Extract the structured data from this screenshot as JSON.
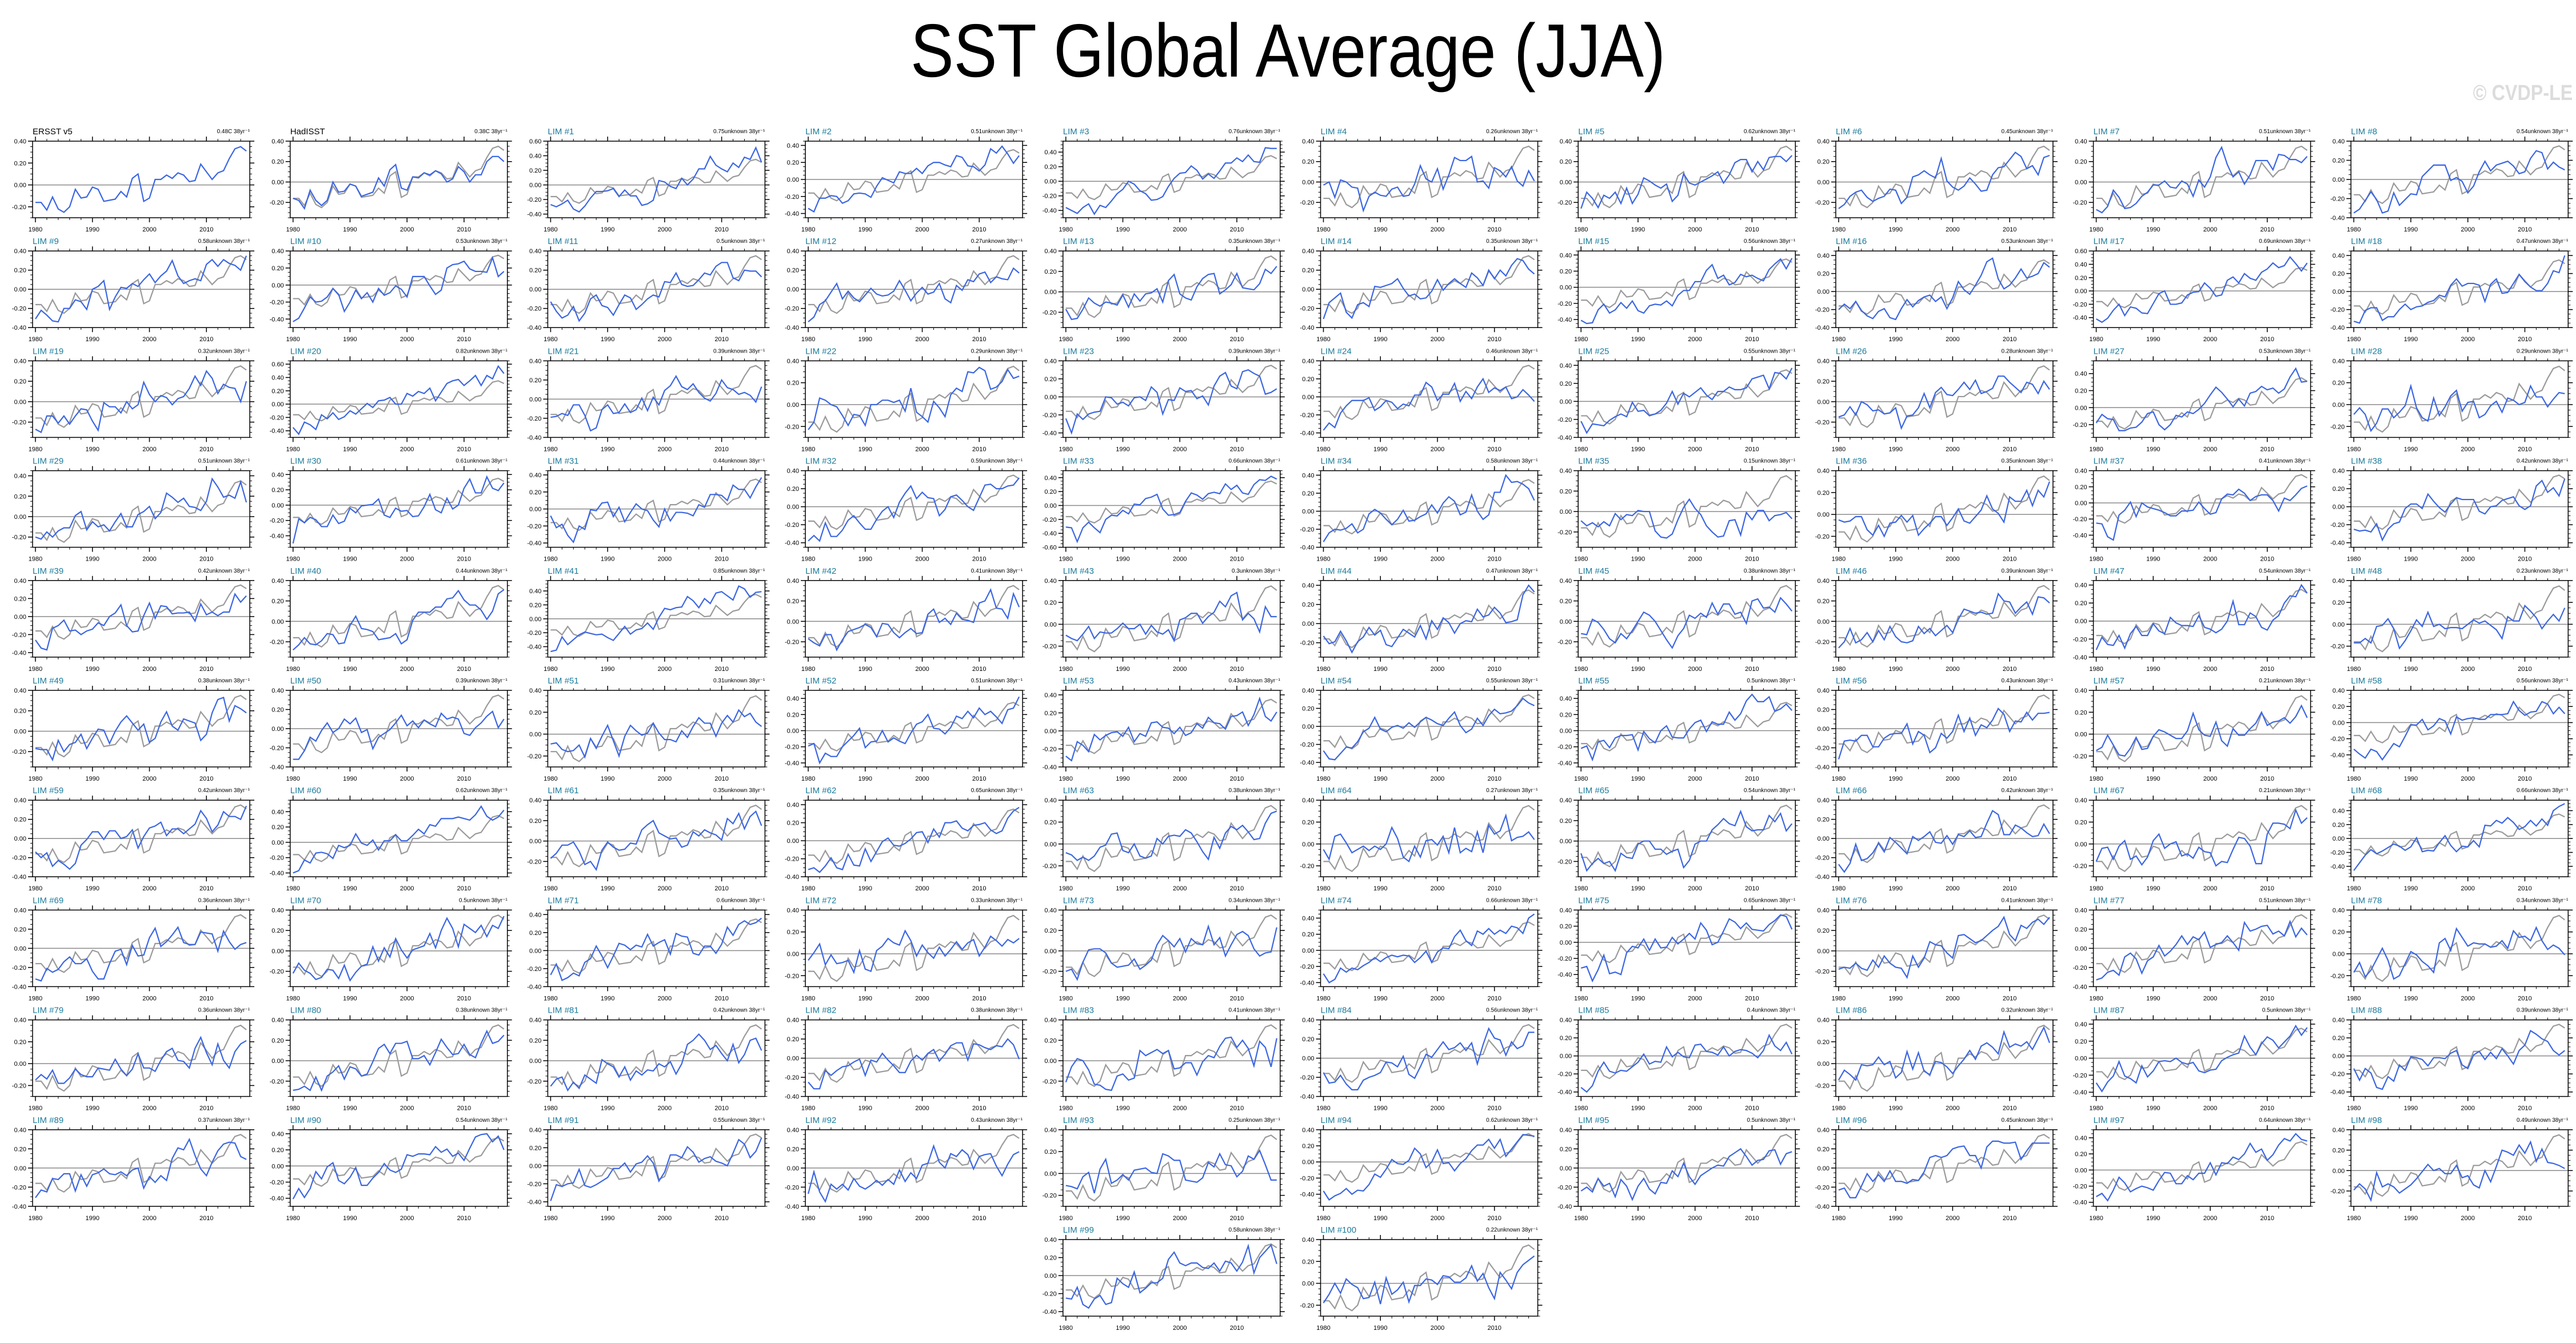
{
  "chart_data": {
    "type": "line",
    "title": "SST Global Average (JJA)",
    "watermark": "© CVDP-LE",
    "x_tick_labels": [
      "1980",
      "1990",
      "2000",
      "2010"
    ],
    "years": [
      1980,
      1981,
      1982,
      1983,
      1984,
      1985,
      1986,
      1987,
      1988,
      1989,
      1990,
      1991,
      1992,
      1993,
      1994,
      1995,
      1996,
      1997,
      1998,
      1999,
      2000,
      2001,
      2002,
      2003,
      2004,
      2005,
      2006,
      2007,
      2008,
      2009,
      2010,
      2011,
      2012,
      2013,
      2014,
      2015,
      2016,
      2017
    ],
    "reference_series": [
      -0.16,
      -0.16,
      -0.23,
      -0.11,
      -0.22,
      -0.25,
      -0.2,
      -0.04,
      -0.12,
      -0.11,
      -0.02,
      -0.04,
      -0.15,
      -0.14,
      -0.13,
      -0.06,
      -0.11,
      0.06,
      0.1,
      -0.15,
      -0.12,
      0.05,
      0.05,
      0.09,
      0.06,
      0.11,
      0.09,
      0.03,
      0.04,
      0.19,
      0.12,
      0.05,
      0.11,
      0.13,
      0.24,
      0.33,
      0.35,
      0.31
    ],
    "colors": {
      "member_line": "#3b66e3",
      "reference_line": "#9a9a9a",
      "zero_line": "#8a8a8a",
      "obs_title": "#000000",
      "lim_title": "#1c7b9c"
    },
    "panels": [
      {
        "title": "ERSST v5",
        "trend_label": "0.48C 38yr⁻¹",
        "kind": "obs",
        "values": [
          -0.16,
          -0.16,
          -0.23,
          -0.11,
          -0.22,
          -0.25,
          -0.2,
          -0.04,
          -0.12,
          -0.11,
          -0.02,
          -0.04,
          -0.15,
          -0.14,
          -0.13,
          -0.06,
          -0.11,
          0.06,
          0.1,
          -0.15,
          -0.12,
          0.05,
          0.05,
          0.09,
          0.06,
          0.11,
          0.09,
          0.03,
          0.04,
          0.19,
          0.12,
          0.05,
          0.11,
          0.13,
          0.24,
          0.33,
          0.35,
          0.31
        ]
      },
      {
        "title": "HadISST",
        "trend_label": "0.38C 38yr⁻¹",
        "kind": "obs",
        "values": [
          -0.16,
          -0.18,
          -0.26,
          -0.08,
          -0.18,
          -0.23,
          -0.18,
          0.0,
          -0.1,
          -0.09,
          -0.02,
          -0.04,
          -0.14,
          -0.12,
          -0.1,
          0.04,
          -0.04,
          0.12,
          0.17,
          -0.06,
          -0.08,
          0.05,
          0.04,
          0.09,
          0.07,
          0.11,
          0.08,
          0.0,
          0.03,
          0.15,
          0.1,
          0.0,
          0.07,
          0.07,
          0.2,
          0.25,
          0.25,
          0.2
        ]
      },
      {
        "title": "LIM #1",
        "trend_label": "0.75unknown 38yr⁻¹",
        "values": [
          -0.27,
          -0.3,
          -0.26,
          -0.21,
          -0.33,
          -0.37,
          -0.29,
          -0.18,
          -0.09,
          -0.09,
          -0.08,
          -0.05,
          -0.16,
          -0.07,
          -0.15,
          -0.15,
          -0.28,
          -0.26,
          -0.21,
          0.06,
          0.04,
          -0.02,
          -0.05,
          0.09,
          0.0,
          0.08,
          0.22,
          0.22,
          0.39,
          0.27,
          0.22,
          0.18,
          0.3,
          0.24,
          0.38,
          0.35,
          0.51,
          0.31
        ]
      },
      {
        "title": "LIM #2",
        "trend_label": "0.51unknown 38yr⁻¹"
      },
      {
        "title": "LIM #3",
        "trend_label": "0.76unknown 38yr⁻¹"
      },
      {
        "title": "LIM #4",
        "trend_label": "0.26unknown 38yr⁻¹"
      },
      {
        "title": "LIM #5",
        "trend_label": "0.62unknown 38yr⁻¹"
      },
      {
        "title": "LIM #6",
        "trend_label": "0.45unknown 38yr⁻¹"
      },
      {
        "title": "LIM #7",
        "trend_label": "0.51unknown 38yr⁻¹"
      },
      {
        "title": "LIM #8",
        "trend_label": "0.54unknown 38yr⁻¹"
      },
      {
        "title": "LIM #9",
        "trend_label": "0.58unknown 38yr⁻¹"
      },
      {
        "title": "LIM #10",
        "trend_label": "0.53unknown 38yr⁻¹"
      },
      {
        "title": "LIM #11",
        "trend_label": "0.5unknown 38yr⁻¹"
      },
      {
        "title": "LIM #12",
        "trend_label": "0.27unknown 38yr⁻¹"
      },
      {
        "title": "LIM #13",
        "trend_label": "0.35unknown 38yr⁻¹"
      },
      {
        "title": "LIM #14",
        "trend_label": "0.35unknown 38yr⁻¹"
      },
      {
        "title": "LIM #15",
        "trend_label": "0.56unknown 38yr⁻¹"
      },
      {
        "title": "LIM #16",
        "trend_label": "0.53unknown 38yr⁻¹"
      },
      {
        "title": "LIM #17",
        "trend_label": "0.69unknown 38yr⁻¹"
      },
      {
        "title": "LIM #18",
        "trend_label": "0.47unknown 38yr⁻¹"
      },
      {
        "title": "LIM #19",
        "trend_label": "0.32unknown 38yr⁻¹"
      },
      {
        "title": "LIM #20",
        "trend_label": "0.82unknown 38yr⁻¹"
      },
      {
        "title": "LIM #21",
        "trend_label": "0.39unknown 38yr⁻¹"
      },
      {
        "title": "LIM #22",
        "trend_label": "0.29unknown 38yr⁻¹"
      },
      {
        "title": "LIM #23",
        "trend_label": "0.39unknown 38yr⁻¹"
      },
      {
        "title": "LIM #24",
        "trend_label": "0.46unknown 38yr⁻¹"
      },
      {
        "title": "LIM #25",
        "trend_label": "0.55unknown 38yr⁻¹"
      },
      {
        "title": "LIM #26",
        "trend_label": "0.28unknown 38yr⁻¹"
      },
      {
        "title": "LIM #27",
        "trend_label": "0.53unknown 38yr⁻¹"
      },
      {
        "title": "LIM #28",
        "trend_label": "0.29unknown 38yr⁻¹"
      },
      {
        "title": "LIM #29",
        "trend_label": "0.51unknown 38yr⁻¹"
      },
      {
        "title": "LIM #30",
        "trend_label": "0.61unknown 38yr⁻¹"
      },
      {
        "title": "LIM #31",
        "trend_label": "0.44unknown 38yr⁻¹"
      },
      {
        "title": "LIM #32",
        "trend_label": "0.59unknown 38yr⁻¹"
      },
      {
        "title": "LIM #33",
        "trend_label": "0.66unknown 38yr⁻¹"
      },
      {
        "title": "LIM #34",
        "trend_label": "0.58unknown 38yr⁻¹"
      },
      {
        "title": "LIM #35",
        "trend_label": "0.15unknown 38yr⁻¹"
      },
      {
        "title": "LIM #36",
        "trend_label": "0.35unknown 38yr⁻¹"
      },
      {
        "title": "LIM #37",
        "trend_label": "0.41unknown 38yr⁻¹"
      },
      {
        "title": "LIM #38",
        "trend_label": "0.42unknown 38yr⁻¹"
      },
      {
        "title": "LIM #39",
        "trend_label": "0.42unknown 38yr⁻¹"
      },
      {
        "title": "LIM #40",
        "trend_label": "0.44unknown 38yr⁻¹"
      },
      {
        "title": "LIM #41",
        "trend_label": "0.85unknown 38yr⁻¹"
      },
      {
        "title": "LIM #42",
        "trend_label": "0.41unknown 38yr⁻¹"
      },
      {
        "title": "LIM #43",
        "trend_label": "0.3unknown 38yr⁻¹"
      },
      {
        "title": "LIM #44",
        "trend_label": "0.47unknown 38yr⁻¹"
      },
      {
        "title": "LIM #45",
        "trend_label": "0.38unknown 38yr⁻¹"
      },
      {
        "title": "LIM #46",
        "trend_label": "0.39unknown 38yr⁻¹"
      },
      {
        "title": "LIM #47",
        "trend_label": "0.54unknown 38yr⁻¹"
      },
      {
        "title": "LIM #48",
        "trend_label": "0.23unknown 38yr⁻¹"
      },
      {
        "title": "LIM #49",
        "trend_label": "0.38unknown 38yr⁻¹"
      },
      {
        "title": "LIM #50",
        "trend_label": "0.39unknown 38yr⁻¹"
      },
      {
        "title": "LIM #51",
        "trend_label": "0.31unknown 38yr⁻¹"
      },
      {
        "title": "LIM #52",
        "trend_label": "0.51unknown 38yr⁻¹"
      },
      {
        "title": "LIM #53",
        "trend_label": "0.43unknown 38yr⁻¹"
      },
      {
        "title": "LIM #54",
        "trend_label": "0.55unknown 38yr⁻¹"
      },
      {
        "title": "LIM #55",
        "trend_label": "0.5unknown 38yr⁻¹"
      },
      {
        "title": "LIM #56",
        "trend_label": "0.43unknown 38yr⁻¹"
      },
      {
        "title": "LIM #57",
        "trend_label": "0.21unknown 38yr⁻¹"
      },
      {
        "title": "LIM #58",
        "trend_label": "0.56unknown 38yr⁻¹"
      },
      {
        "title": "LIM #59",
        "trend_label": "0.42unknown 38yr⁻¹"
      },
      {
        "title": "LIM #60",
        "trend_label": "0.62unknown 38yr⁻¹"
      },
      {
        "title": "LIM #61",
        "trend_label": "0.35unknown 38yr⁻¹"
      },
      {
        "title": "LIM #62",
        "trend_label": "0.65unknown 38yr⁻¹"
      },
      {
        "title": "LIM #63",
        "trend_label": "0.38unknown 38yr⁻¹"
      },
      {
        "title": "LIM #64",
        "trend_label": "0.27unknown 38yr⁻¹"
      },
      {
        "title": "LIM #65",
        "trend_label": "0.54unknown 38yr⁻¹"
      },
      {
        "title": "LIM #66",
        "trend_label": "0.42unknown 38yr⁻¹"
      },
      {
        "title": "LIM #67",
        "trend_label": "0.21unknown 38yr⁻¹"
      },
      {
        "title": "LIM #68",
        "trend_label": "0.66unknown 38yr⁻¹"
      },
      {
        "title": "LIM #69",
        "trend_label": "0.36unknown 38yr⁻¹"
      },
      {
        "title": "LIM #70",
        "trend_label": "0.5unknown 38yr⁻¹"
      },
      {
        "title": "LIM #71",
        "trend_label": "0.6unknown 38yr⁻¹"
      },
      {
        "title": "LIM #72",
        "trend_label": "0.33unknown 38yr⁻¹"
      },
      {
        "title": "LIM #73",
        "trend_label": "0.34unknown 38yr⁻¹"
      },
      {
        "title": "LIM #74",
        "trend_label": "0.66unknown 38yr⁻¹"
      },
      {
        "title": "LIM #75",
        "trend_label": "0.65unknown 38yr⁻¹"
      },
      {
        "title": "LIM #76",
        "trend_label": "0.41unknown 38yr⁻¹"
      },
      {
        "title": "LIM #77",
        "trend_label": "0.51unknown 38yr⁻¹"
      },
      {
        "title": "LIM #78",
        "trend_label": "0.34unknown 38yr⁻¹"
      },
      {
        "title": "LIM #79",
        "trend_label": "0.36unknown 38yr⁻¹"
      },
      {
        "title": "LIM #80",
        "trend_label": "0.38unknown 38yr⁻¹"
      },
      {
        "title": "LIM #81",
        "trend_label": "0.42unknown 38yr⁻¹"
      },
      {
        "title": "LIM #82",
        "trend_label": "0.38unknown 38yr⁻¹"
      },
      {
        "title": "LIM #83",
        "trend_label": "0.41unknown 38yr⁻¹"
      },
      {
        "title": "LIM #84",
        "trend_label": "0.56unknown 38yr⁻¹"
      },
      {
        "title": "LIM #85",
        "trend_label": "0.4unknown 38yr⁻¹"
      },
      {
        "title": "LIM #86",
        "trend_label": "0.32unknown 38yr⁻¹"
      },
      {
        "title": "LIM #87",
        "trend_label": "0.5unknown 38yr⁻¹"
      },
      {
        "title": "LIM #88",
        "trend_label": "0.39unknown 38yr⁻¹"
      },
      {
        "title": "LIM #89",
        "trend_label": "0.37unknown 38yr⁻¹"
      },
      {
        "title": "LIM #90",
        "trend_label": "0.54unknown 38yr⁻¹"
      },
      {
        "title": "LIM #91",
        "trend_label": "0.55unknown 38yr⁻¹"
      },
      {
        "title": "LIM #92",
        "trend_label": "0.43unknown 38yr⁻¹"
      },
      {
        "title": "LIM #93",
        "trend_label": "0.25unknown 38yr⁻¹"
      },
      {
        "title": "LIM #94",
        "trend_label": "0.62unknown 38yr⁻¹"
      },
      {
        "title": "LIM #95",
        "trend_label": "0.5unknown 38yr⁻¹"
      },
      {
        "title": "LIM #96",
        "trend_label": "0.45unknown 38yr⁻¹"
      },
      {
        "title": "LIM #97",
        "trend_label": "0.64unknown 38yr⁻¹"
      },
      {
        "title": "LIM #98",
        "trend_label": "0.49unknown 38yr⁻¹"
      },
      {
        "title": "LIM #99",
        "trend_label": "0.58unknown 38yr⁻¹",
        "values": [
          -0.25,
          -0.26,
          -0.13,
          -0.32,
          -0.36,
          -0.26,
          -0.22,
          -0.32,
          -0.3,
          -0.03,
          -0.09,
          -0.13,
          0.04,
          -0.19,
          -0.14,
          -0.08,
          -0.08,
          -0.03,
          0.18,
          0.26,
          0.14,
          0.11,
          0.14,
          0.14,
          0.09,
          0.08,
          0.14,
          0.05,
          0.16,
          0.14,
          0.05,
          0.15,
          0.33,
          0.03,
          0.2,
          0.27,
          0.34,
          0.13
        ]
      },
      {
        "title": "LIM #100",
        "trend_label": "0.22unknown 38yr⁻¹",
        "values": [
          -0.18,
          -0.1,
          0.0,
          -0.09,
          0.04,
          -0.01,
          -0.04,
          -0.14,
          -0.13,
          0.01,
          -0.19,
          0.05,
          -0.1,
          -0.06,
          0.01,
          -0.17,
          -0.02,
          -0.02,
          0.04,
          0.03,
          -0.01,
          0.07,
          0.06,
          0.01,
          0.01,
          0.05,
          0.16,
          0.02,
          0.09,
          -0.04,
          -0.14,
          0.1,
          0.03,
          -0.05,
          0.1,
          0.17,
          0.21,
          0.25
        ]
      }
    ]
  }
}
